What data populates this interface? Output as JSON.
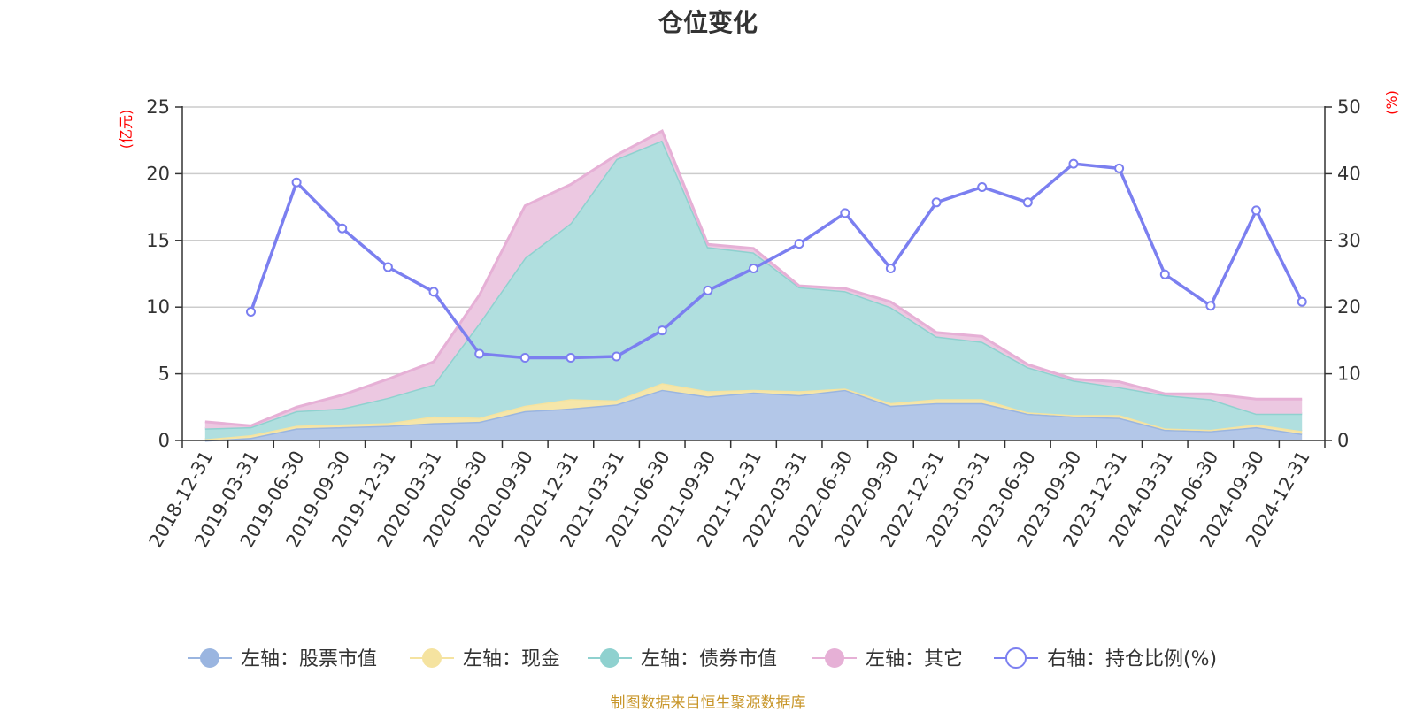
{
  "chart_data": {
    "type": "area",
    "title": "仓位变化",
    "left_axis_unit": "(亿元)",
    "right_axis_unit": "(%)",
    "left_ylim": [
      0,
      25
    ],
    "left_yticks": [
      0,
      5,
      10,
      15,
      20,
      25
    ],
    "right_ylim": [
      0,
      50
    ],
    "right_yticks": [
      0,
      10,
      20,
      30,
      40,
      50
    ],
    "grid": true,
    "legend_position": "bottom",
    "categories": [
      "2018-12-31",
      "2019-03-31",
      "2019-06-30",
      "2019-09-30",
      "2019-12-31",
      "2020-03-31",
      "2020-06-30",
      "2020-09-30",
      "2020-12-31",
      "2021-03-31",
      "2021-06-30",
      "2021-09-30",
      "2021-12-31",
      "2022-03-31",
      "2022-06-30",
      "2022-09-30",
      "2022-12-31",
      "2023-03-31",
      "2023-06-30",
      "2023-09-30",
      "2023-12-31",
      "2024-03-31",
      "2024-06-30",
      "2024-09-30",
      "2024-12-31"
    ],
    "series": [
      {
        "name": "左轴：股票市值",
        "axis": "left",
        "kind": "stacked-area",
        "color": "#9ab5e0",
        "fill": "#b3c7e8",
        "values": [
          0.0,
          0.2,
          0.9,
          1.0,
          1.1,
          1.3,
          1.4,
          2.2,
          2.4,
          2.7,
          3.8,
          3.3,
          3.6,
          3.4,
          3.8,
          2.6,
          2.8,
          2.8,
          2.0,
          1.8,
          1.7,
          0.8,
          0.7,
          1.0,
          0.5
        ]
      },
      {
        "name": "左轴：现金",
        "axis": "left",
        "kind": "stacked-area",
        "color": "#f5e3a0",
        "fill": "#f6e6a9",
        "values": [
          0.1,
          0.2,
          0.2,
          0.2,
          0.2,
          0.5,
          0.3,
          0.4,
          0.7,
          0.3,
          0.5,
          0.4,
          0.2,
          0.3,
          0.1,
          0.2,
          0.3,
          0.3,
          0.1,
          0.1,
          0.2,
          0.1,
          0.1,
          0.2,
          0.2
        ]
      },
      {
        "name": "左轴：债券市值",
        "axis": "left",
        "kind": "stacked-area",
        "color": "#8fd1cf",
        "fill": "#b0dfdf",
        "values": [
          0.8,
          0.6,
          1.1,
          1.2,
          1.9,
          2.4,
          7.1,
          11.1,
          13.2,
          18.1,
          18.2,
          10.8,
          10.3,
          7.8,
          7.3,
          7.2,
          4.7,
          4.3,
          3.4,
          2.6,
          2.1,
          2.5,
          2.3,
          0.8,
          1.3
        ]
      },
      {
        "name": "左轴：其它",
        "axis": "left",
        "kind": "stacked-area",
        "color": "#e6b0d6",
        "fill": "#ecc8e1",
        "values": [
          0.5,
          0.1,
          0.3,
          1.0,
          1.4,
          1.7,
          2.1,
          3.9,
          2.9,
          0.3,
          0.7,
          0.2,
          0.3,
          0.1,
          0.2,
          0.4,
          0.3,
          0.4,
          0.2,
          0.1,
          0.4,
          0.1,
          0.4,
          1.1,
          1.1
        ]
      },
      {
        "name": "右轴：持仓比例(%)",
        "axis": "right",
        "kind": "line",
        "color": "#7b7ff0",
        "values": [
          null,
          19.3,
          38.7,
          31.8,
          26.0,
          22.3,
          13.0,
          12.4,
          12.4,
          12.6,
          16.5,
          22.5,
          25.8,
          29.5,
          34.1,
          25.8,
          35.7,
          38.0,
          35.7,
          41.5,
          40.8,
          24.9,
          20.2,
          34.5,
          20.8
        ]
      }
    ]
  },
  "source_note": "制图数据来自恒生聚源数据库"
}
